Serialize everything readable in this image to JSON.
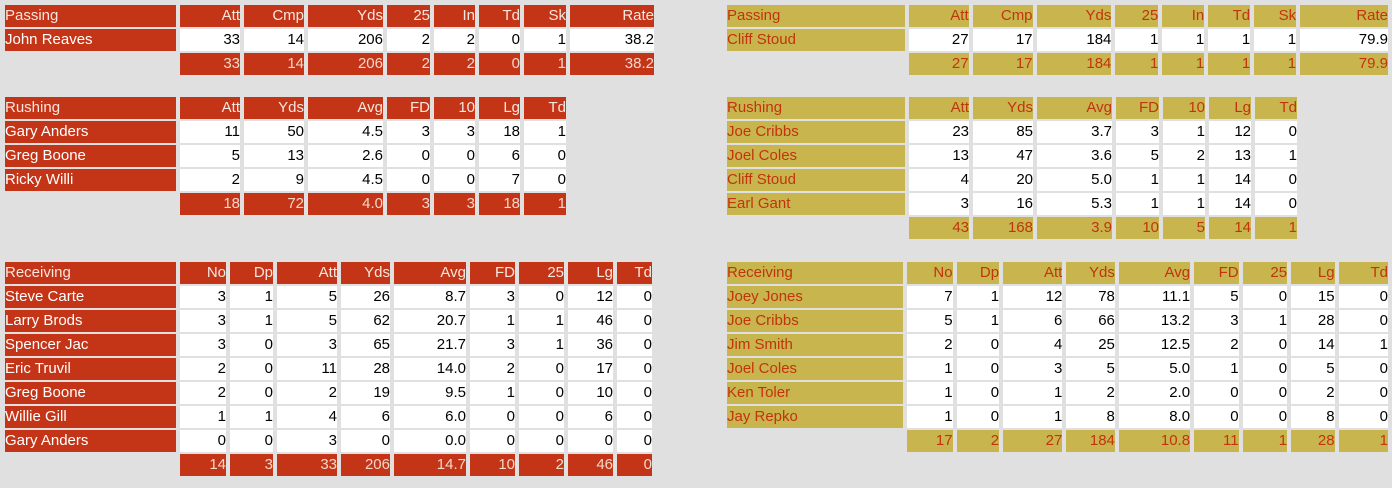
{
  "colors": {
    "page_bg": "#e0e0e0",
    "left_accent": "#c43417",
    "left_header_text": "#f6e7df",
    "left_name_text": "#ffffff",
    "left_totals_text": "#f2d9cc",
    "right_accent": "#c9b54d",
    "right_text": "#c1340e",
    "data_cell_bg": "#ffffff",
    "data_cell_text": "#000000"
  },
  "left": {
    "passing": {
      "title": "Passing",
      "headers": [
        "Att",
        "Cmp",
        "Yds",
        "25",
        "In",
        "Td",
        "Sk",
        "Rate"
      ],
      "rows": [
        {
          "name": "John Reaves",
          "values": [
            "33",
            "14",
            "206",
            "2",
            "2",
            "0",
            "1",
            "38.2"
          ]
        }
      ],
      "totals": [
        "33",
        "14",
        "206",
        "2",
        "2",
        "0",
        "1",
        "38.2"
      ]
    },
    "rushing": {
      "title": "Rushing",
      "headers": [
        "Att",
        "Yds",
        "Avg",
        "FD",
        "10",
        "Lg",
        "Td"
      ],
      "rows": [
        {
          "name": "Gary Anders",
          "values": [
            "11",
            "50",
            "4.5",
            "3",
            "3",
            "18",
            "1"
          ]
        },
        {
          "name": "Greg Boone",
          "values": [
            "5",
            "13",
            "2.6",
            "0",
            "0",
            "6",
            "0"
          ]
        },
        {
          "name": "Ricky Willi",
          "values": [
            "2",
            "9",
            "4.5",
            "0",
            "0",
            "7",
            "0"
          ]
        }
      ],
      "totals": [
        "18",
        "72",
        "4.0",
        "3",
        "3",
        "18",
        "1"
      ]
    },
    "receiving": {
      "title": "Receiving",
      "headers": [
        "No",
        "Dp",
        "Att",
        "Yds",
        "Avg",
        "FD",
        "25",
        "Lg",
        "Td"
      ],
      "rows": [
        {
          "name": "Steve Carte",
          "values": [
            "3",
            "1",
            "5",
            "26",
            "8.7",
            "3",
            "0",
            "12",
            "0"
          ]
        },
        {
          "name": "Larry Brods",
          "values": [
            "3",
            "1",
            "5",
            "62",
            "20.7",
            "1",
            "1",
            "46",
            "0"
          ]
        },
        {
          "name": "Spencer Jac",
          "values": [
            "3",
            "0",
            "3",
            "65",
            "21.7",
            "3",
            "1",
            "36",
            "0"
          ]
        },
        {
          "name": "Eric Truvil",
          "values": [
            "2",
            "0",
            "11",
            "28",
            "14.0",
            "2",
            "0",
            "17",
            "0"
          ]
        },
        {
          "name": "Greg Boone",
          "values": [
            "2",
            "0",
            "2",
            "19",
            "9.5",
            "1",
            "0",
            "10",
            "0"
          ]
        },
        {
          "name": "Willie Gill",
          "values": [
            "1",
            "1",
            "4",
            "6",
            "6.0",
            "0",
            "0",
            "6",
            "0"
          ]
        },
        {
          "name": "Gary Anders",
          "values": [
            "0",
            "0",
            "3",
            "0",
            "0.0",
            "0",
            "0",
            "0",
            "0"
          ]
        }
      ],
      "totals": [
        "14",
        "3",
        "33",
        "206",
        "14.7",
        "10",
        "2",
        "46",
        "0"
      ]
    }
  },
  "right": {
    "passing": {
      "title": "Passing",
      "headers": [
        "Att",
        "Cmp",
        "Yds",
        "25",
        "In",
        "Td",
        "Sk",
        "Rate"
      ],
      "rows": [
        {
          "name": "Cliff Stoud",
          "values": [
            "27",
            "17",
            "184",
            "1",
            "1",
            "1",
            "1",
            "79.9"
          ]
        }
      ],
      "totals": [
        "27",
        "17",
        "184",
        "1",
        "1",
        "1",
        "1",
        "79.9"
      ]
    },
    "rushing": {
      "title": "Rushing",
      "headers": [
        "Att",
        "Yds",
        "Avg",
        "FD",
        "10",
        "Lg",
        "Td"
      ],
      "rows": [
        {
          "name": "Joe Cribbs",
          "values": [
            "23",
            "85",
            "3.7",
            "3",
            "1",
            "12",
            "0"
          ]
        },
        {
          "name": "Joel Coles",
          "values": [
            "13",
            "47",
            "3.6",
            "5",
            "2",
            "13",
            "1"
          ]
        },
        {
          "name": "Cliff Stoud",
          "values": [
            "4",
            "20",
            "5.0",
            "1",
            "1",
            "14",
            "0"
          ]
        },
        {
          "name": "Earl Gant",
          "values": [
            "3",
            "16",
            "5.3",
            "1",
            "1",
            "14",
            "0"
          ]
        }
      ],
      "totals": [
        "43",
        "168",
        "3.9",
        "10",
        "5",
        "14",
        "1"
      ]
    },
    "receiving": {
      "title": "Receiving",
      "headers": [
        "No",
        "Dp",
        "Att",
        "Yds",
        "Avg",
        "FD",
        "25",
        "Lg",
        "Td"
      ],
      "rows": [
        {
          "name": "Joey Jones",
          "values": [
            "7",
            "1",
            "12",
            "78",
            "11.1",
            "5",
            "0",
            "15",
            "0"
          ]
        },
        {
          "name": "Joe Cribbs",
          "values": [
            "5",
            "1",
            "6",
            "66",
            "13.2",
            "3",
            "1",
            "28",
            "0"
          ]
        },
        {
          "name": "Jim Smith",
          "values": [
            "2",
            "0",
            "4",
            "25",
            "12.5",
            "2",
            "0",
            "14",
            "1"
          ]
        },
        {
          "name": "Joel Coles",
          "values": [
            "1",
            "0",
            "3",
            "5",
            "5.0",
            "1",
            "0",
            "5",
            "0"
          ]
        },
        {
          "name": "Ken Toler",
          "values": [
            "1",
            "0",
            "1",
            "2",
            "2.0",
            "0",
            "0",
            "2",
            "0"
          ]
        },
        {
          "name": "Jay Repko",
          "values": [
            "1",
            "0",
            "1",
            "8",
            "8.0",
            "0",
            "0",
            "8",
            "0"
          ]
        }
      ],
      "totals": [
        "17",
        "2",
        "27",
        "184",
        "10.8",
        "11",
        "1",
        "28",
        "1"
      ]
    }
  }
}
